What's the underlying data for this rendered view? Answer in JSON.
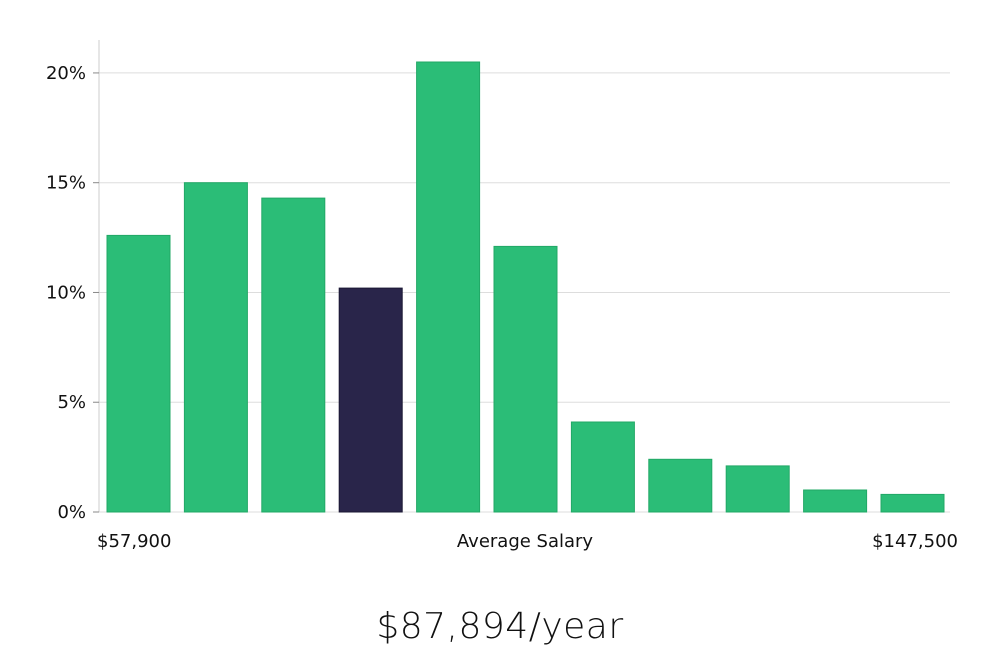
{
  "chart_data": {
    "type": "bar",
    "categories": [
      "1",
      "2",
      "3",
      "4",
      "5",
      "6",
      "7",
      "8",
      "9",
      "10",
      "11"
    ],
    "values": [
      12.6,
      15.0,
      14.3,
      10.2,
      20.5,
      12.1,
      4.1,
      2.4,
      2.1,
      1.0,
      0.8
    ],
    "highlight_index": 3,
    "ylim": [
      0,
      21.5
    ],
    "yticks": [
      0,
      5,
      10,
      15,
      20
    ],
    "ytick_labels": [
      "0%",
      "5%",
      "10%",
      "15%",
      "20%"
    ],
    "x_min_label": "$57,900",
    "xlabel": "Average Salary",
    "x_max_label": "$147,500",
    "grid": true,
    "colors": {
      "bar": "#2bbd77",
      "highlight": "#29254a",
      "grid": "#dddddd",
      "axis": "#cccccc"
    }
  },
  "summary": "$87,894/year"
}
